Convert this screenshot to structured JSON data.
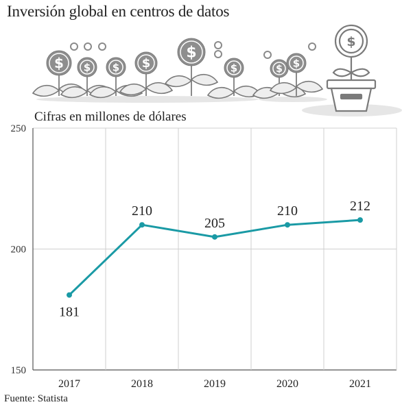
{
  "header": {
    "title": "Inversión global en centros de datos",
    "subtitle": "Cifras en millones de dólares"
  },
  "footer": {
    "source": "Fuente: Statista"
  },
  "illustration": {
    "icons": [
      "dollar-coin-plant-icon",
      "coin-icon",
      "plant-pot-icon"
    ]
  },
  "colors": {
    "line": "#1a9aa5",
    "grid": "#cfcfcf",
    "illustration": "#9a9a9a"
  },
  "chart_data": {
    "type": "line",
    "categories": [
      "2017",
      "2018",
      "2019",
      "2020",
      "2021"
    ],
    "series": [
      {
        "values": [
          181,
          210,
          205,
          210,
          212
        ]
      }
    ],
    "data_labels": [
      "181",
      "210",
      "205",
      "210",
      "212"
    ],
    "yticks": [
      150,
      200,
      250
    ],
    "ytick_labels": [
      "150",
      "200",
      "250"
    ],
    "ylim": [
      150,
      250
    ],
    "grid": true
  }
}
